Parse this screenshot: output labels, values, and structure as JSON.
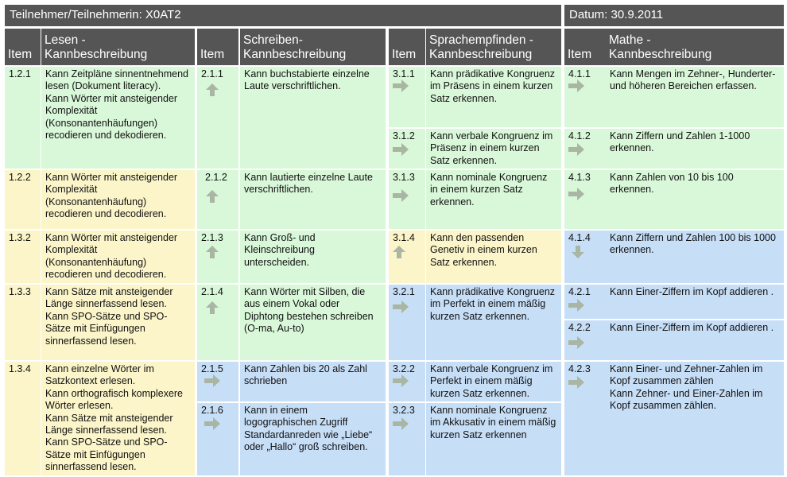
{
  "header": {
    "participant": "Teilnehmer/Teilnehmerin: X0AT2",
    "date": "Datum: 30.9.2011"
  },
  "columns": {
    "item_label": "Item",
    "lesen": "Lesen -\nKannbeschreibung",
    "schreiben": "Schreiben-\nKannbeschreibung",
    "sprache": "Sprachempfinden -\nKannbeschreibung",
    "mathe": "Mathe -\nKannbeschreibung"
  },
  "colors": {
    "green": "#d9f7d9",
    "yellow": "#fbf5c9",
    "blue": "#c7def7",
    "header": "#555555",
    "arrow": "#a9b6a3"
  },
  "lesen": [
    {
      "item": "1.2.1",
      "text": "Kann Zeitpläne sinnentnehmend lesen (Dokument literacy).\nKann Wörter mit ansteigender Komplexität (Konsonantenhäufungen) recodieren und dekodieren."
    },
    {
      "item": "1.2.2",
      "text": "Kann Wörter mit ansteigender Komplexität (Konsonantenhäufung) recodieren und decodieren."
    },
    {
      "item": "1.3.2",
      "text": "Kann Wörter mit ansteigender Komplexität (Konsonantenhäufung) recodieren und decodieren."
    },
    {
      "item": "1.3.3",
      "text": "Kann Sätze mit ansteigender Länge sinnerfassend lesen.\nKann SPO-Sätze und SPO-Sätze mit Einfügungen sinnerfassend lesen."
    },
    {
      "item": "1.3.4",
      "text": "Kann einzelne Wörter im Satzkontext erlesen.\nKann orthografisch komplexere Wörter erlesen.\nKann Sätze mit ansteigender Länge sinnerfassend lesen.\nKann SPO-Sätze und SPO-Sätze mit Einfügungen sinnerfassend lesen."
    }
  ],
  "schreiben": [
    {
      "item": "2.1.1",
      "text": "Kann buchstabierte einzelne Laute verschriftlichen.",
      "arrow": "up"
    },
    {
      "item": "2.1.2",
      "text": "Kann lautierte einzelne Laute verschriftlichen.",
      "arrow": "up"
    },
    {
      "item": "2.1.3",
      "text": "Kann Groß- und Kleinschreibung unterscheiden.",
      "arrow": "up"
    },
    {
      "item": "2.1.4",
      "text": "Kann Wörter mit Silben, die aus einem Vokal oder Diphtong bestehen schreiben (O-ma, Au-to)",
      "arrow": "up"
    },
    {
      "item": "2.1.5",
      "text": "Kann Zahlen bis 20 als Zahl schrieben",
      "arrow": "right"
    },
    {
      "item": "2.1.6",
      "text": "Kann in einem logographischen Zugriff Standardanreden wie „Liebe“ oder „Hallo“ groß schreiben.",
      "arrow": "right"
    }
  ],
  "sprache": [
    {
      "item": "3.1.1",
      "text": "Kann prädikative Kongruenz im Präsens in einem kurzen Satz erkennen.",
      "arrow": "right"
    },
    {
      "item": "3.1.2",
      "text": "Kann verbale Kongruenz im Präsenz in einem kurzen Satz erkennen.",
      "arrow": "right"
    },
    {
      "item": "3.1.3",
      "text": "Kann nominale Kongruenz in einem kurzen Satz erkennen.",
      "arrow": "right"
    },
    {
      "item": "3.1.4",
      "text": "Kann den passenden Genetiv in einem kurzen Satz erkennen.",
      "arrow": "up"
    },
    {
      "item": "3.2.1",
      "text": "Kann prädikative Kongruenz im Perfekt in einem mäßig kurzen Satz erkennen.",
      "arrow": "right"
    },
    {
      "item": "3.2.2",
      "text": "Kann verbale Kongruenz im Perfekt in einem mäßig kurzen Satz erkennen.",
      "arrow": "right"
    },
    {
      "item": "3.2.3",
      "text": "Kann nominale Kongruenz im Akkusativ in einem mäßig kurzen Satz erkennen",
      "arrow": "right"
    }
  ],
  "mathe": [
    {
      "item": "4.1.1",
      "text": "Kann Mengen im Zehner-, Hunderter- und höheren Bereichen erfassen.",
      "arrow": "right"
    },
    {
      "item": "4.1.2",
      "text": "Kann Ziffern und Zahlen 1-1000 erkennen.",
      "arrow": "right"
    },
    {
      "item": "4.1.3",
      "text": "Kann Zahlen von 10 bis 100 erkennen.",
      "arrow": "right"
    },
    {
      "item": "4.1.4",
      "text": "Kann Ziffern und Zahlen 100 bis 1000 erkennen.",
      "arrow": "down"
    },
    {
      "item": "4.2.1",
      "text": "Kann Einer-Ziffern im Kopf addieren .",
      "arrow": "right"
    },
    {
      "item": "4.2.2",
      "text": "Kann Einer-Ziffern im Kopf addieren .",
      "arrow": "right"
    },
    {
      "item": "4.2.3",
      "text": "Kann Einer- und Zehner-Zahlen im Kopf zusammen zählen\nKann Zehner- und Einer-Zahlen im Kopf zusammen zählen.",
      "arrow": "right"
    }
  ]
}
